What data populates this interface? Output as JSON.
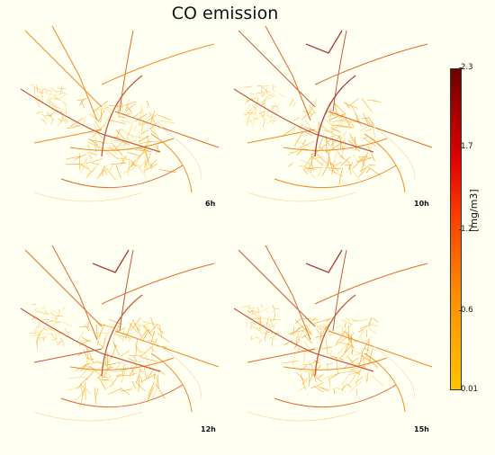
{
  "figure": {
    "title": "CO emission",
    "panels": [
      {
        "label": "6h",
        "intensity": 0.55
      },
      {
        "label": "10h",
        "intensity": 0.75
      },
      {
        "label": "12h",
        "intensity": 0.7
      },
      {
        "label": "15h",
        "intensity": 0.62
      }
    ]
  },
  "colorbar": {
    "unit": "[mg/m3]",
    "ticks": [
      "2.3",
      "1.7",
      "1.2",
      "0.6",
      "0.01"
    ],
    "colors": {
      "low": "#fec400",
      "mid": "#fb3b00",
      "high": "#6d0000"
    }
  }
}
